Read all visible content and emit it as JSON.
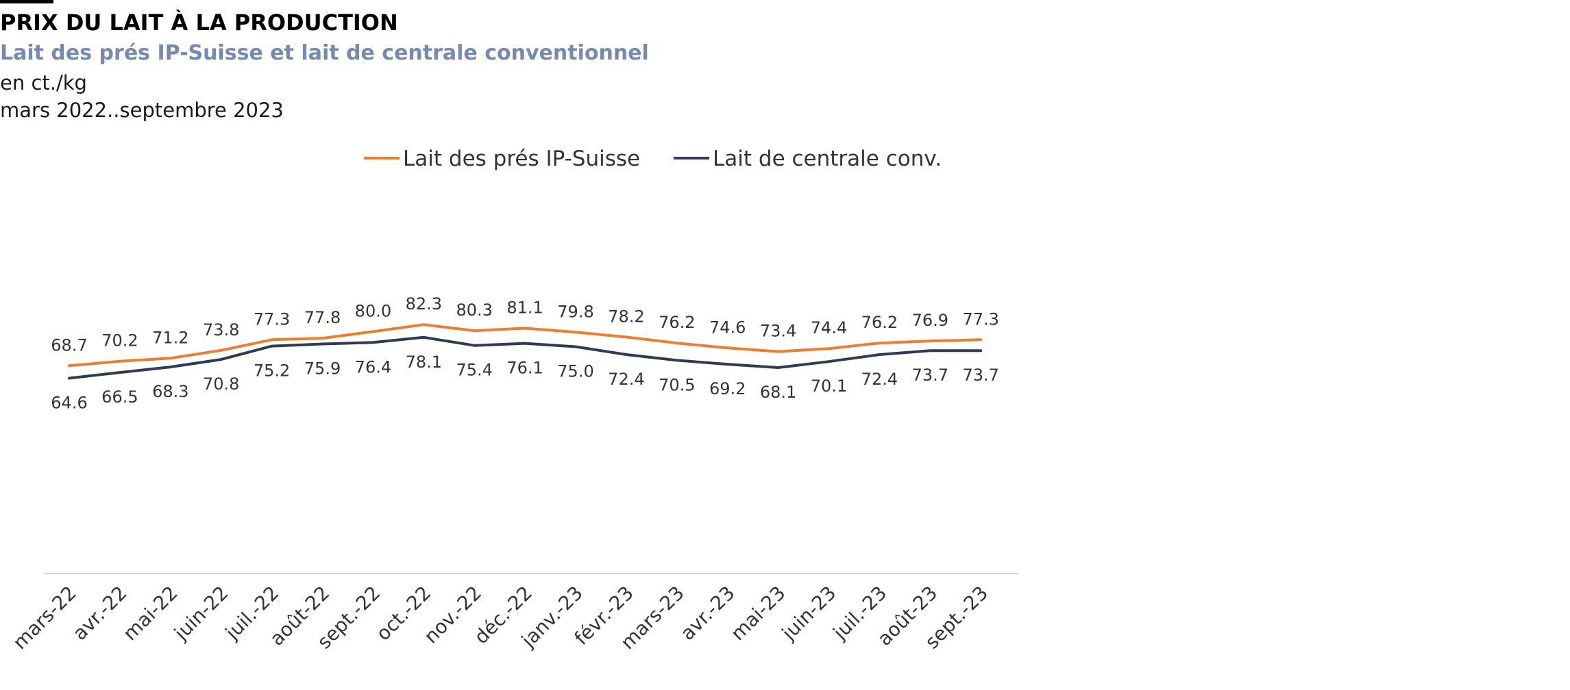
{
  "header": {
    "title": "PRIX DU LAIT À LA PRODUCTION",
    "subtitle": "Lait des prés IP-Suisse et lait de centrale conventionnel",
    "unit": "en ct./kg",
    "period": "mars 2022..septembre 2023"
  },
  "chart_data": {
    "type": "line",
    "title": "PRIX DU LAIT À LA PRODUCTION",
    "subtitle": "Lait des prés IP-Suisse et lait de centrale conventionnel",
    "ylabel": "en ct./kg",
    "xlabel": "",
    "categories": [
      "mars-22",
      "avr.-22",
      "mai-22",
      "juin-22",
      "juil.-22",
      "août-22",
      "sept.-22",
      "oct.-22",
      "nov.-22",
      "déc.-22",
      "janv.-23",
      "févr.-23",
      "mars-23",
      "avr.-23",
      "mai-23",
      "juin-23",
      "juil.-23",
      "août-23",
      "sept.-23"
    ],
    "series": [
      {
        "name": "Lait des prés IP-Suisse",
        "color": "#ed7d31",
        "label_position": "above",
        "values": [
          68.7,
          70.2,
          71.2,
          73.8,
          77.3,
          77.8,
          80.0,
          82.3,
          80.3,
          81.1,
          79.8,
          78.2,
          76.2,
          74.6,
          73.4,
          74.4,
          76.2,
          76.9,
          77.3
        ],
        "labels": [
          "68.7",
          "70.2",
          "71.2",
          "73.8",
          "77.3",
          "77.8",
          "80.0",
          "82.3",
          "80.3",
          "81.1",
          "79.8",
          "78.2",
          "76.2",
          "74.6",
          "73.4",
          "74.4",
          "76.2",
          "76.9",
          "77.3"
        ]
      },
      {
        "name": "Lait de centrale conv.",
        "color": "#2e3b55",
        "label_position": "below",
        "values": [
          64.6,
          66.5,
          68.3,
          70.8,
          75.2,
          75.9,
          76.4,
          78.1,
          75.4,
          76.1,
          75.0,
          72.4,
          70.5,
          69.2,
          68.1,
          70.1,
          72.4,
          73.7,
          73.7
        ],
        "labels": [
          "64.6",
          "66.5",
          "68.3",
          "70.8",
          "75.2",
          "75.9",
          "76.4",
          "78.1",
          "75.4",
          "76.1",
          "75.0",
          "72.4",
          "70.5",
          "69.2",
          "68.1",
          "70.1",
          "72.4",
          "73.7",
          "73.7"
        ]
      }
    ],
    "ylim": [
      0,
      140
    ],
    "grid": false,
    "legend_position": "top"
  }
}
